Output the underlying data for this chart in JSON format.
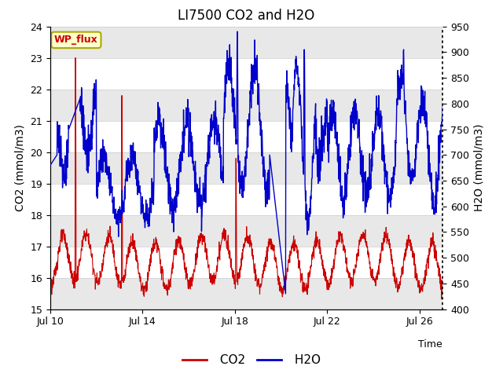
{
  "title": "LI7500 CO2 and H2O",
  "xlabel": "Time",
  "ylabel_left": "CO2 (mmol/m3)",
  "ylabel_right": "H2O (mmol/m3)",
  "co2_ylim": [
    15.0,
    24.0
  ],
  "h2o_ylim": [
    400,
    950
  ],
  "x_ticks_labels": [
    "Jul 10",
    "Jul 14",
    "Jul 18",
    "Jul 22",
    "Jul 26"
  ],
  "x_ticks_pos": [
    0,
    4,
    8,
    12,
    16
  ],
  "annotation_text": "WP_flux",
  "annotation_facecolor": "#ffffcc",
  "annotation_edgecolor": "#aaaa00",
  "annotation_textcolor": "#cc0000",
  "background_color": "#ffffff",
  "plot_bg_color": "#e8e8e8",
  "white_band_color": "#ffffff",
  "gray_band_color": "#d4d4d4",
  "co2_color": "#cc0000",
  "h2o_color": "#0000cc",
  "title_fontsize": 12,
  "axis_label_fontsize": 10,
  "tick_fontsize": 9,
  "legend_fontsize": 11
}
